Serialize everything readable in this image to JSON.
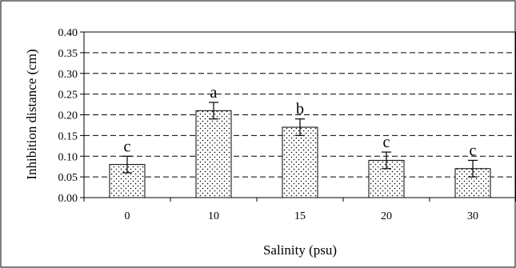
{
  "chart_data": {
    "type": "bar",
    "title": "",
    "xlabel": "Salinity (psu)",
    "ylabel": "Inhibition distance (cm)",
    "categories": [
      "0",
      "10",
      "15",
      "20",
      "30"
    ],
    "values": [
      0.08,
      0.21,
      0.17,
      0.09,
      0.07
    ],
    "error": [
      0.02,
      0.02,
      0.02,
      0.02,
      0.02
    ],
    "significance_letters": [
      "c",
      "a",
      "b",
      "c",
      "c"
    ],
    "ylim": [
      0,
      0.4
    ],
    "yticks": [
      "0.00",
      "0.05",
      "0.10",
      "0.15",
      "0.20",
      "0.25",
      "0.30",
      "0.35",
      "0.40"
    ],
    "grid": "horizontal dashed",
    "bar_fill": "white with black dot stipple",
    "bar_color": "#000000"
  }
}
